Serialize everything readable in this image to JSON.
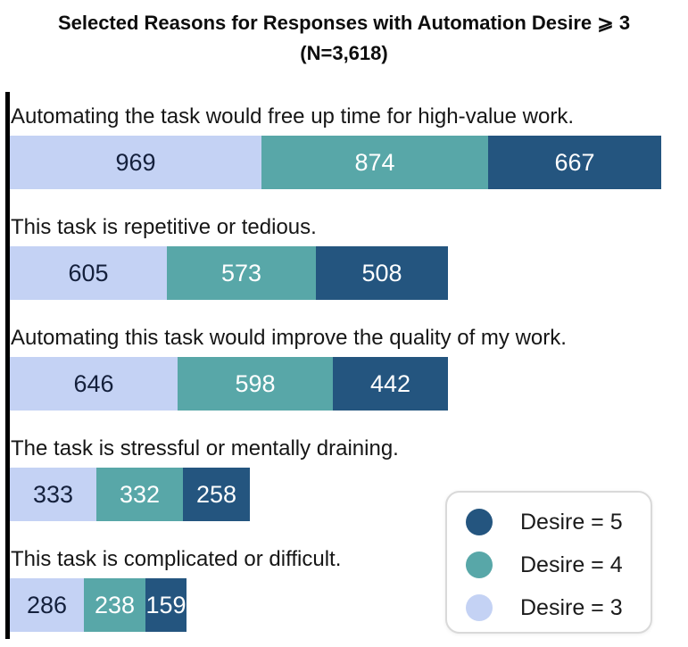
{
  "title": {
    "line1": "Selected Reasons for Responses with Automation Desire ⩾ 3",
    "line2": "(N=3,618)"
  },
  "legend": {
    "items": [
      {
        "label": "Desire = 5",
        "color": "#24557f"
      },
      {
        "label": "Desire = 4",
        "color": "#58a7a8"
      },
      {
        "label": "Desire = 3",
        "color": "#c4d2f4"
      }
    ]
  },
  "chart_data": {
    "type": "bar",
    "orientation": "horizontal",
    "stacked": true,
    "title": "Selected Reasons for Responses with Automation Desire ⩾ 3 (N=3,618)",
    "categories": [
      "Automating the task would free up time for high-value work.",
      "This task is repetitive or tedious.",
      "Automating this task would improve the quality of my work.",
      "The task is stressful or mentally draining.",
      "This task is complicated or difficult."
    ],
    "series": [
      {
        "name": "Desire = 3",
        "key": "desire-3",
        "color": "#c4d2f4",
        "text_color": "#14203c",
        "values": [
          969,
          605,
          646,
          333,
          286
        ]
      },
      {
        "name": "Desire = 4",
        "key": "desire-4",
        "color": "#58a7a8",
        "text_color": "#ffffff",
        "values": [
          874,
          573,
          598,
          332,
          238
        ]
      },
      {
        "name": "Desire = 5",
        "key": "desire-5",
        "color": "#24557f",
        "text_color": "#ffffff",
        "values": [
          667,
          508,
          442,
          258,
          159
        ]
      }
    ],
    "row_totals": [
      2510,
      1686,
      1686,
      923,
      683
    ],
    "value_labels": true,
    "legend_position": "bottom-right",
    "x_axis": {
      "visible": false
    },
    "y_axis": {
      "visible": true,
      "color": "#000000"
    }
  }
}
